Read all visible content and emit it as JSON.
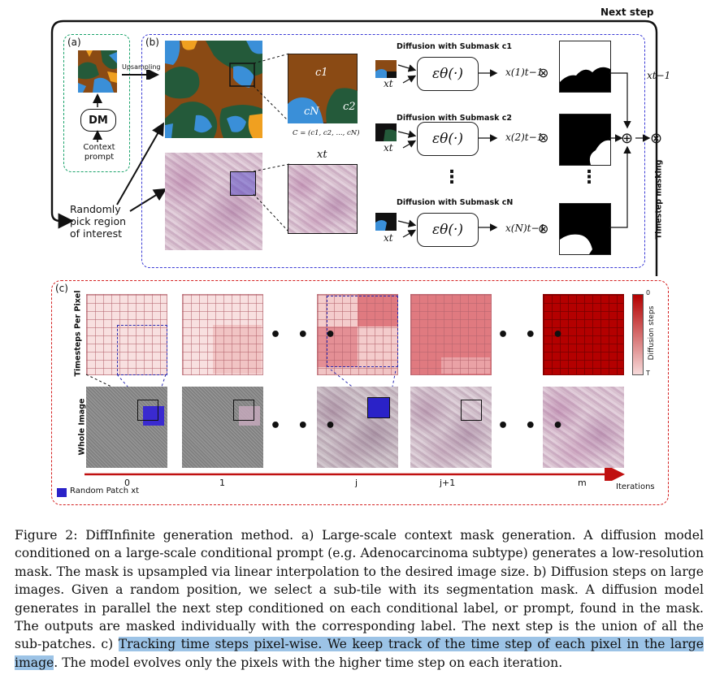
{
  "labels": {
    "next_step": "Next step",
    "a": "(a)",
    "b": "(b)",
    "c": "(c)",
    "upsampling": "Upsampling",
    "dm": "DM",
    "context_prompt": "Context prompt",
    "random_pick": "Randomly pick region of interest",
    "c1": "c1",
    "c2": "c2",
    "cN": "cN",
    "C_def": "C = (c1, c2, ..., cN)",
    "xt": "xt",
    "diff_sub_1": "Diffusion with Submask c1",
    "diff_sub_2": "Diffusion with Submask c2",
    "diff_sub_N": "Diffusion with Submask cN",
    "eps": "εθ(·)",
    "out_1": "x(1)t−1",
    "out_2": "x(2)t−1",
    "out_N": "x(N)t−1",
    "x_prev": "xt−1",
    "timestep_masking": "Timestep masking",
    "otimes": "⊗",
    "oplus": "⊕",
    "vdots": "⋮",
    "timesteps_per_pixel": "Timesteps Per Pixel",
    "whole_image": "Whole Image",
    "diffusion_steps": "Diffusion steps",
    "scale_top": "0",
    "scale_bottom": "T",
    "iterations": "Iterations",
    "random_patch": "Random Patch xt",
    "hdots": "• • •"
  },
  "iterations": [
    "0",
    "1",
    "j",
    "j+1",
    "m"
  ],
  "colors": {
    "green_dashed": "#1aa36b",
    "blue_dashed": "#3b3bd6",
    "red_dashed": "#d42020",
    "mask_brown": "#8a4a14",
    "mask_green": "#245a3a",
    "mask_blue": "#3a8fd8",
    "mask_orange": "#f0a020",
    "patch_blue": "#2020c0",
    "diffusion_dark": "#b40000",
    "diffusion_light": "#f6dada",
    "highlight": "#9cc3e6"
  },
  "caption": {
    "p1": "Figure 2: DiffInfinite generation method.  a) Large-scale context mask generation.  A diffusion model conditioned on a large-scale conditional prompt (e.g. Adenocarcinoma subtype) generates a low-resolution mask. The mask is upsampled via linear interpolation to the desired image size. b) Diffusion steps on large images. Given a random position, we select a sub-tile with its segmentation mask.  A diffusion model generates in parallel the next step conditioned on each conditional label, or prompt, found in the mask.  The outputs are masked individually with the corresponding label. The next step is the union of all the sub-patches. c) ",
    "highlight": "Tracking time steps pixel-wise. We keep track of the time step of each pixel in the large image",
    "p2": ". The model evolves only the pixels with the higher time step on each iteration."
  }
}
